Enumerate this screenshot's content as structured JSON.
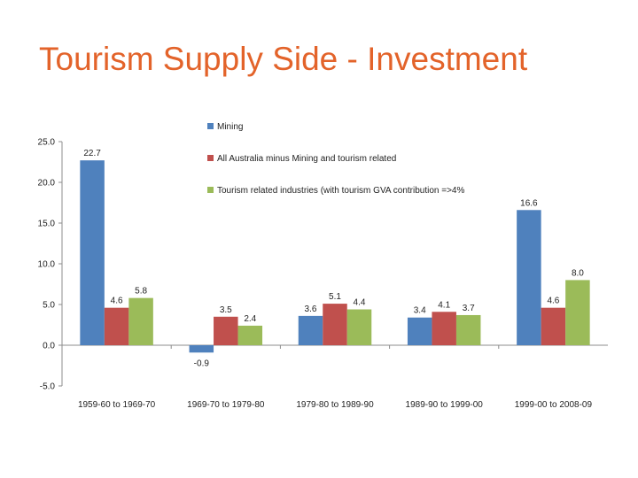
{
  "slide": {
    "title": "Tourism Supply Side - Investment"
  },
  "chart_data": {
    "type": "bar",
    "title": "",
    "xlabel": "",
    "ylabel": "",
    "categories": [
      "1959-60 to 1969-70",
      "1969-70 to 1979-80",
      "1979-80 to 1989-90",
      "1989-90 to 1999-00",
      "1999-00 to 2008-09"
    ],
    "series": [
      {
        "name": "Mining",
        "color": "#4F81BD",
        "values": [
          22.7,
          -0.9,
          3.6,
          3.4,
          16.6
        ]
      },
      {
        "name": "All Australia minus Mining and tourism related",
        "color": "#C0504D",
        "values": [
          4.6,
          3.5,
          5.1,
          4.1,
          4.6
        ]
      },
      {
        "name": "Tourism related industries (with tourism GVA contribution =>4%",
        "color": "#9BBB59",
        "values": [
          5.8,
          2.4,
          4.4,
          3.7,
          8.0
        ]
      }
    ],
    "ylim": [
      -5.0,
      25.0
    ],
    "yticks": [
      "25.0",
      "20.0",
      "15.0",
      "10.0",
      "5.0",
      "0.0",
      "-5.0"
    ],
    "grid": false,
    "legend_position": "top-center"
  }
}
